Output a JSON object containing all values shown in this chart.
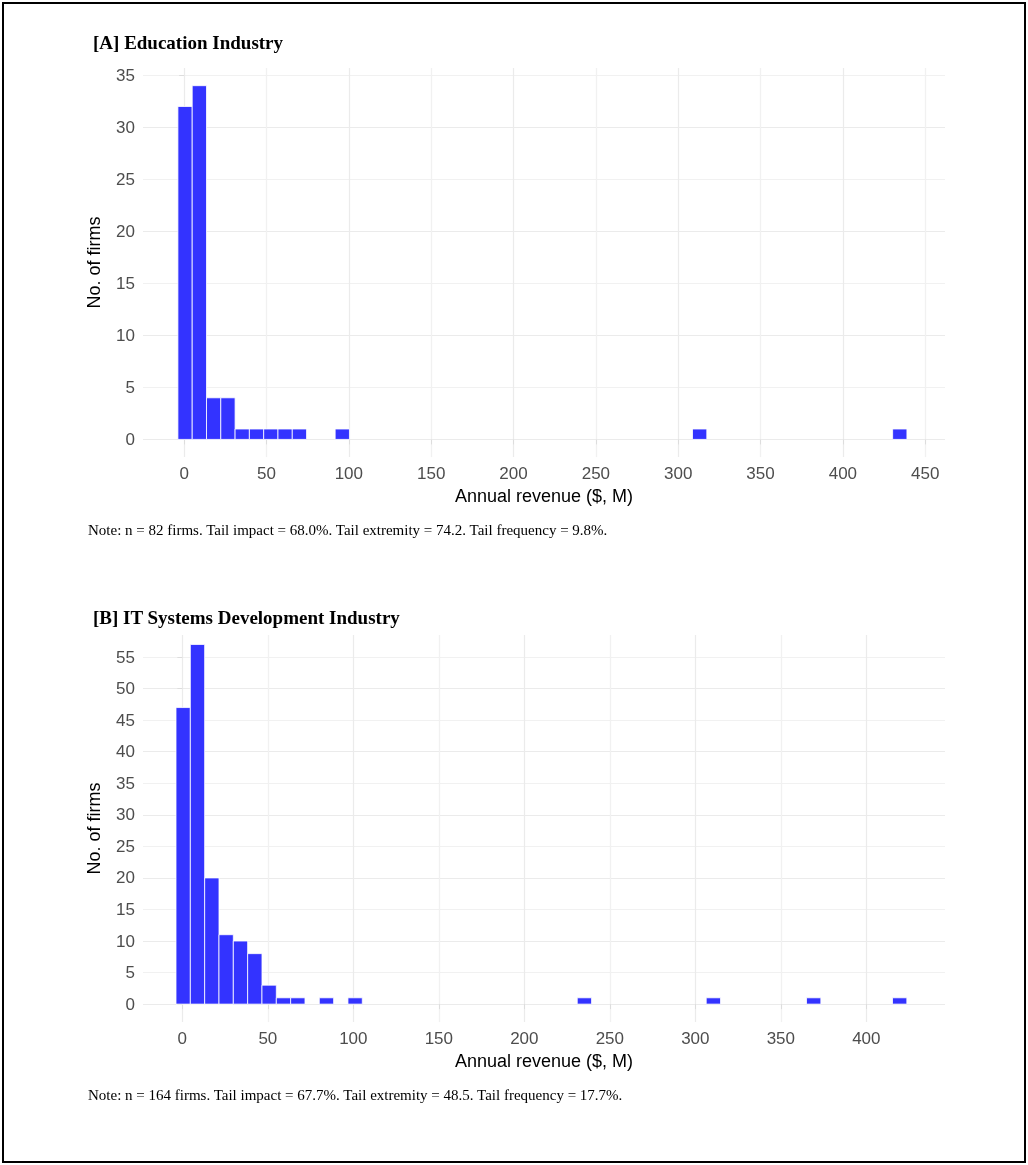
{
  "chart_data": [
    {
      "type": "histogram",
      "title": "[A] Education Industry",
      "xlabel": "Annual revenue ($, M)",
      "ylabel": "No. of firms",
      "bins": [
        -3.8,
        4.88,
        13.56,
        22.24,
        30.92,
        39.6,
        48.28,
        56.96,
        65.64,
        74.32,
        83,
        91.68,
        100.36,
        109.04,
        117.72,
        126.4,
        135.08,
        143.76,
        152.44,
        161.12,
        169.8,
        178.48,
        187.16,
        195.84,
        204.52,
        213.2,
        221.88,
        230.56,
        239.24,
        247.92,
        256.6,
        265.28,
        273.96,
        282.64,
        291.32,
        300,
        308.68,
        317.36,
        326.04,
        334.72,
        343.4,
        352.08,
        360.76,
        369.44,
        378.12,
        386.8,
        395.48,
        404.16,
        412.84,
        421.52,
        430.2,
        438.88
      ],
      "values": [
        32,
        34,
        4,
        4,
        1,
        1,
        1,
        1,
        1,
        0,
        0,
        1,
        0,
        0,
        0,
        0,
        0,
        0,
        0,
        0,
        0,
        0,
        0,
        0,
        0,
        0,
        0,
        0,
        0,
        0,
        0,
        0,
        0,
        0,
        0,
        0,
        1,
        0,
        0,
        0,
        0,
        0,
        0,
        0,
        0,
        0,
        0,
        0,
        0,
        0,
        1
      ],
      "color": "#3333ff",
      "xlim": [
        -25,
        462
      ],
      "xticks": [
        0,
        50,
        100,
        150,
        200,
        250,
        300,
        350,
        400,
        450
      ],
      "ylim": [
        -1.7,
        35.7
      ],
      "yticks": [
        0,
        5,
        10,
        15,
        20,
        25,
        30,
        35
      ],
      "grid": true,
      "annotations": [
        "Note: n = 82 firms. Tail impact = 68.0%. Tail extremity = 74.2. Tail frequency = 9.8%."
      ]
    },
    {
      "type": "histogram",
      "title": "[B] IT Systems Development Industry",
      "xlabel": "Annual revenue ($, M)",
      "ylabel": "No. of firms",
      "bins": [
        -3.7,
        4.68,
        13.06,
        21.44,
        29.82,
        38.2,
        46.58,
        54.96,
        63.34,
        71.72,
        80.1,
        88.48,
        96.86,
        105.24,
        113.62,
        122,
        130.38,
        138.76,
        147.14,
        155.52,
        163.9,
        172.28,
        180.66,
        189.04,
        197.42,
        205.8,
        214.18,
        222.56,
        230.94,
        239.32,
        247.7,
        256.08,
        264.46,
        272.84,
        281.22,
        289.6,
        297.98,
        306.36,
        314.74,
        323.12,
        331.5,
        339.88,
        348.26,
        356.64,
        365.02,
        373.4,
        381.78,
        390.16,
        398.54,
        406.92,
        415.3,
        423.68
      ],
      "values": [
        47,
        57,
        20,
        11,
        10,
        8,
        3,
        1,
        1,
        0,
        1,
        0,
        1,
        0,
        0,
        0,
        0,
        0,
        0,
        0,
        0,
        0,
        0,
        0,
        0,
        0,
        0,
        0,
        1,
        0,
        0,
        0,
        0,
        0,
        0,
        0,
        0,
        1,
        0,
        0,
        0,
        0,
        0,
        0,
        1,
        0,
        0,
        0,
        0,
        0,
        1
      ],
      "color": "#3333ff",
      "xlim": [
        -23,
        446
      ],
      "xticks": [
        0,
        50,
        100,
        150,
        200,
        250,
        300,
        350,
        400
      ],
      "ylim": [
        -2.85,
        58.5
      ],
      "yticks": [
        0,
        5,
        10,
        15,
        20,
        25,
        30,
        35,
        40,
        45,
        50,
        55
      ],
      "grid": true,
      "annotations": [
        "Note: n = 164 firms. Tail impact = 67.7%. Tail extremity = 48.5. Tail frequency = 17.7%."
      ]
    }
  ]
}
